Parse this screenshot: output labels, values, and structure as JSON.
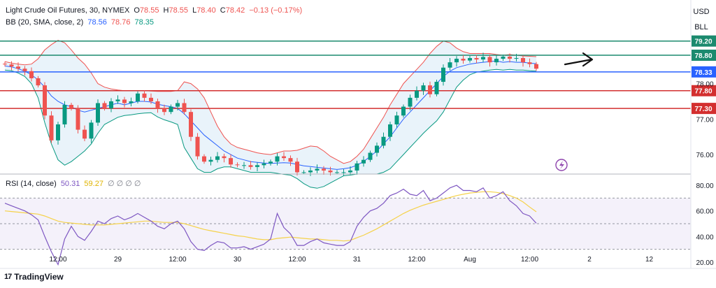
{
  "header": {
    "instrument": "Light Crude Oil Futures, 30, NYMEX",
    "o_label": "O",
    "o_value": "78.55",
    "h_label": "H",
    "h_value": "78.55",
    "l_label": "L",
    "l_value": "78.40",
    "c_label": "C",
    "c_value": "78.42",
    "change": "−0.13 (−0.17%)",
    "bb_label": "BB (20, SMA, close, 2)",
    "bb_basis": "78.56",
    "bb_upper": "78.76",
    "bb_lower": "78.35",
    "currency": "USD",
    "unit": "BLL"
  },
  "rsi_legend": {
    "label": "RSI (14, close)",
    "value": "50.31",
    "ma_value": "59.27",
    "placeholders": "∅ ∅ ∅ ∅"
  },
  "brand": {
    "logo": "17",
    "name": "TradingView"
  },
  "colors": {
    "candle_up": "#089981",
    "candle_down": "#ef5350",
    "bb_upper": "#ef5350",
    "bb_lower": "#089981",
    "bb_basis": "#2962ff",
    "bb_fill": "#e3f0f9",
    "rsi": "#7e57c2",
    "rsi_ma": "#f5d24a",
    "level_green": "#1b8a6e",
    "level_red": "#d32f2f",
    "level_blue": "#2962ff",
    "band_fill": "#ede7f6"
  },
  "chart_data": [
    {
      "type": "candlestick",
      "title": "",
      "ylim": [
        75.45,
        79.45
      ],
      "yticks": [
        "78.00",
        "77.00",
        "76.00"
      ],
      "x_ticks": [
        "12:00",
        "29",
        "12:00",
        "30",
        "12:00",
        "31",
        "12:00",
        "Aug",
        "12:00",
        "2",
        "12"
      ],
      "x_tick_index": [
        8,
        17,
        26,
        35,
        44,
        53,
        62,
        70,
        79,
        88,
        97
      ],
      "close": [
        78.54,
        78.48,
        78.42,
        78.35,
        78.15,
        77.95,
        77.1,
        76.4,
        76.85,
        77.4,
        77.3,
        76.7,
        76.45,
        76.9,
        77.45,
        77.3,
        77.5,
        77.55,
        77.45,
        77.5,
        77.72,
        77.6,
        77.5,
        77.3,
        77.2,
        77.35,
        77.45,
        77.2,
        76.5,
        75.95,
        75.8,
        75.85,
        75.95,
        75.9,
        75.72,
        75.7,
        75.7,
        75.65,
        75.7,
        75.75,
        75.8,
        75.95,
        75.9,
        75.8,
        75.5,
        75.5,
        75.55,
        75.6,
        75.55,
        75.5,
        75.5,
        75.5,
        75.55,
        75.75,
        75.85,
        76.05,
        76.25,
        76.5,
        76.85,
        77.1,
        77.35,
        77.6,
        77.8,
        77.95,
        77.7,
        78.05,
        78.45,
        78.6,
        78.7,
        78.65,
        78.72,
        78.68,
        78.75,
        78.6,
        78.7,
        78.76,
        78.7,
        78.72,
        78.6,
        78.55,
        78.42
      ],
      "bb": {
        "basis": [
          78.5,
          78.47,
          78.42,
          78.35,
          78.25,
          78.1,
          77.9,
          77.65,
          77.5,
          77.4,
          77.35,
          77.25,
          77.2,
          77.25,
          77.3,
          77.35,
          77.4,
          77.45,
          77.4,
          77.45,
          77.5,
          77.5,
          77.48,
          77.42,
          77.38,
          77.35,
          77.3,
          77.15,
          76.95,
          76.75,
          76.55,
          76.4,
          76.25,
          76.1,
          76.0,
          75.9,
          75.85,
          75.8,
          75.78,
          75.76,
          75.75,
          75.76,
          75.77,
          75.76,
          75.72,
          75.68,
          75.66,
          75.64,
          75.62,
          75.6,
          75.58,
          75.6,
          75.63,
          75.7,
          75.8,
          75.95,
          76.1,
          76.3,
          76.5,
          76.75,
          77.0,
          77.2,
          77.4,
          77.6,
          77.8,
          78.0,
          78.2,
          78.35,
          78.45,
          78.5,
          78.55,
          78.58,
          78.6,
          78.62,
          78.64,
          78.6,
          78.62,
          78.6,
          78.6,
          78.58,
          78.56
        ],
        "upper": [
          78.62,
          78.58,
          78.55,
          78.53,
          78.55,
          78.7,
          78.95,
          79.1,
          79.22,
          79.15,
          78.95,
          78.72,
          78.55,
          78.3,
          78.0,
          77.9,
          77.85,
          77.82,
          77.8,
          77.8,
          77.8,
          77.8,
          77.79,
          77.78,
          77.78,
          77.78,
          77.8,
          78.05,
          78.0,
          77.85,
          77.6,
          77.2,
          76.8,
          76.5,
          76.3,
          76.2,
          76.15,
          76.1,
          76.05,
          76.02,
          76.0,
          76.05,
          76.1,
          76.1,
          76.12,
          76.18,
          76.24,
          76.22,
          76.1,
          75.95,
          75.85,
          75.75,
          75.8,
          75.95,
          76.15,
          76.45,
          76.75,
          77.05,
          77.4,
          77.7,
          78.0,
          78.2,
          78.4,
          78.6,
          78.85,
          79.05,
          79.2,
          79.15,
          79.0,
          78.9,
          78.85,
          78.85,
          78.85,
          78.85,
          78.82,
          78.8,
          78.82,
          78.8,
          78.78,
          78.77,
          78.76
        ],
        "lower": [
          78.38,
          78.36,
          78.3,
          78.2,
          78.0,
          77.6,
          76.9,
          76.3,
          75.85,
          75.7,
          75.8,
          75.95,
          76.1,
          76.3,
          76.6,
          76.85,
          76.95,
          77.05,
          77.1,
          77.12,
          77.15,
          77.17,
          77.18,
          77.06,
          76.98,
          76.92,
          76.85,
          76.2,
          75.9,
          75.6,
          75.5,
          75.5,
          75.6,
          75.65,
          75.65,
          75.6,
          75.55,
          75.5,
          75.5,
          75.5,
          75.5,
          75.47,
          75.44,
          75.42,
          75.32,
          75.18,
          75.08,
          75.05,
          75.1,
          75.2,
          75.3,
          75.4,
          75.42,
          75.45,
          75.45,
          75.45,
          75.45,
          75.5,
          75.6,
          75.8,
          76.0,
          76.2,
          76.4,
          76.6,
          76.78,
          76.95,
          77.2,
          77.55,
          77.9,
          78.1,
          78.25,
          78.32,
          78.35,
          78.38,
          78.4,
          78.38,
          78.4,
          78.38,
          78.38,
          78.36,
          78.35
        ]
      },
      "levels": [
        {
          "label": "79.20",
          "value": 79.2,
          "color": "#1b8a6e"
        },
        {
          "label": "78.80",
          "value": 78.8,
          "color": "#1b8a6e"
        },
        {
          "label": "78.33",
          "value": 78.33,
          "color": "#2962ff"
        },
        {
          "label": "77.80",
          "value": 77.8,
          "color": "#d32f2f"
        },
        {
          "label": "77.30",
          "value": 77.3,
          "color": "#d32f2f"
        }
      ],
      "annotation": "arrow"
    },
    {
      "type": "line",
      "title": "",
      "ylim": [
        15,
        85
      ],
      "yticks": [
        "80.00",
        "60.00",
        "40.00",
        "20.00"
      ],
      "band": [
        30,
        70
      ],
      "midline": 50,
      "series": [
        {
          "values": [
            66,
            64,
            62,
            60,
            57,
            53,
            40,
            28,
            18,
            38,
            48,
            40,
            37,
            44,
            52,
            50,
            54,
            56,
            53,
            55,
            58,
            55,
            52,
            48,
            46,
            50,
            52,
            46,
            36,
            30,
            29,
            33,
            36,
            35,
            31,
            31,
            32,
            30,
            32,
            34,
            38,
            58,
            47,
            42,
            33,
            33,
            36,
            38,
            35,
            34,
            33,
            33,
            36,
            48,
            55,
            60,
            62,
            66,
            72,
            74,
            77,
            73,
            72,
            76,
            68,
            70,
            74,
            78,
            80,
            76,
            76,
            75,
            78,
            70,
            72,
            75,
            68,
            64,
            58,
            56,
            50.31
          ]
        },
        {
          "values": [
            60,
            59.5,
            59,
            58.5,
            58,
            57.5,
            56,
            54,
            52,
            51,
            50.5,
            50,
            49.5,
            49,
            49,
            49,
            49.5,
            50,
            50.5,
            51,
            51.5,
            52,
            52,
            51.5,
            51,
            51,
            51,
            50,
            48.5,
            47,
            45.5,
            44.5,
            43.5,
            42.5,
            41.5,
            40.5,
            40,
            39,
            38,
            37.5,
            37.5,
            38.5,
            39,
            39.5,
            39,
            38.5,
            38,
            38,
            37.5,
            37,
            37,
            36.5,
            37,
            39,
            41,
            43.5,
            46,
            49,
            52,
            55,
            58,
            60.5,
            62.5,
            64.5,
            66,
            67.5,
            69,
            70.5,
            72,
            73,
            74,
            74.5,
            75,
            75,
            74.5,
            73.5,
            72,
            70,
            67,
            63,
            59.27
          ]
        }
      ]
    }
  ]
}
